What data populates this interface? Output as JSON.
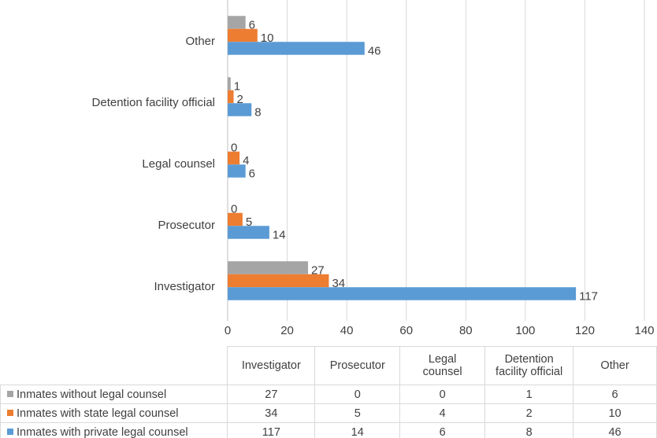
{
  "chart_data": {
    "type": "hbar",
    "categories": [
      "Investigator",
      "Prosecutor",
      "Legal counsel",
      "Detention facility official",
      "Other"
    ],
    "series": [
      {
        "name": "Inmates without legal counsel",
        "color": "#a5a5a5",
        "values": [
          27,
          0,
          0,
          1,
          6
        ]
      },
      {
        "name": "Inmates with state legal counsel",
        "color": "#ed7d31",
        "values": [
          34,
          5,
          4,
          2,
          10
        ]
      },
      {
        "name": "Inmates with private legal counsel",
        "color": "#5b9bd5",
        "values": [
          117,
          14,
          6,
          8,
          46
        ]
      }
    ],
    "xlim": [
      0,
      140
    ],
    "xticks": [
      0,
      20,
      40,
      60,
      80,
      100,
      120,
      140
    ],
    "grid": true
  }
}
